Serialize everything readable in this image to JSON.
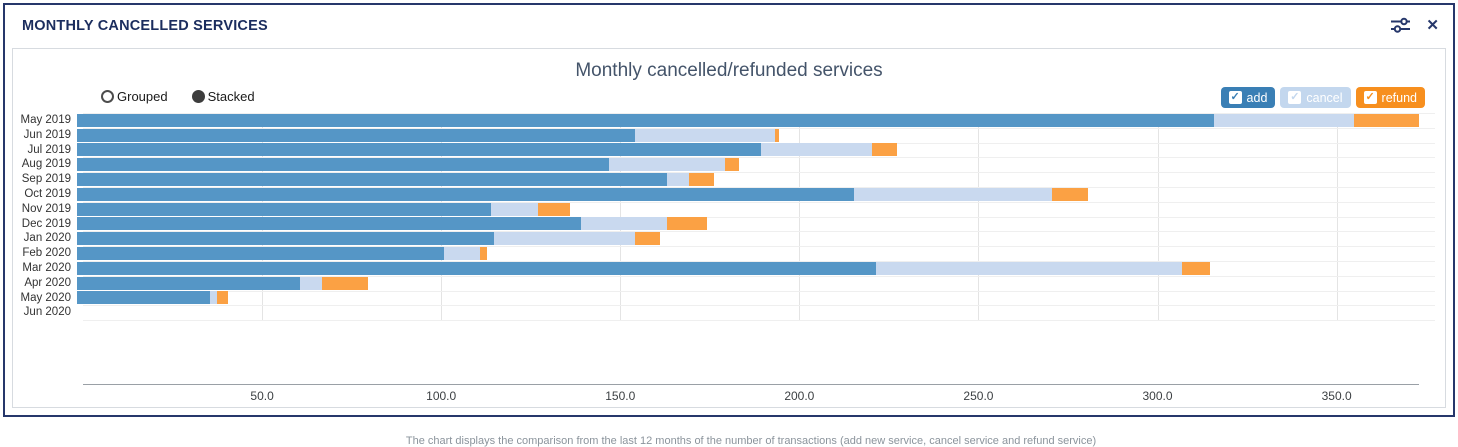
{
  "widget": {
    "title": "MONTHLY CANCELLED SERVICES"
  },
  "chart": {
    "title": "Monthly cancelled/refunded services",
    "modes": [
      {
        "label": "Grouped",
        "selected": false
      },
      {
        "label": "Stacked",
        "selected": true
      }
    ],
    "legend": [
      {
        "label": "add",
        "color": "#3a7fb5"
      },
      {
        "label": "cancel",
        "color": "#c3d7ee"
      },
      {
        "label": "refund",
        "color": "#f78f1e"
      }
    ],
    "caption": "The chart displays the comparison from the last 12 months of the number of transactions (add new service, cancel service and refund service)"
  },
  "chart_data": {
    "type": "bar",
    "orientation": "horizontal",
    "stacked": true,
    "title": "Monthly cancelled/refunded services",
    "categories": [
      "May 2019",
      "Jun 2019",
      "Jul 2019",
      "Aug 2019",
      "Sep 2019",
      "Oct 2019",
      "Nov 2019",
      "Dec 2019",
      "Jan 2020",
      "Feb 2020",
      "Mar 2020",
      "Apr 2020",
      "May 2020",
      "Jun 2020"
    ],
    "series": [
      {
        "name": "add",
        "color": "#5596c6",
        "values": [
          316,
          155,
          190,
          148,
          164,
          216,
          115,
          140,
          116,
          102,
          222,
          62,
          37,
          0
        ]
      },
      {
        "name": "cancel",
        "color": "#c9d9ef",
        "values": [
          39,
          39,
          31,
          32,
          6,
          55,
          13,
          24,
          39,
          10,
          85,
          6,
          2,
          0
        ]
      },
      {
        "name": "refund",
        "color": "#fba144",
        "values": [
          18,
          1,
          7,
          4,
          7,
          10,
          9,
          11,
          7,
          2,
          8,
          13,
          3,
          0
        ]
      }
    ],
    "xlabel": "",
    "ylabel": "",
    "xlim": [
      0,
      373
    ],
    "xticks": [
      50,
      100,
      150,
      200,
      250,
      300,
      350
    ],
    "xtick_labels": [
      "50.0",
      "100.0",
      "150.0",
      "200.0",
      "250.0",
      "300.0",
      "350.0"
    ],
    "grid": "vertical"
  }
}
